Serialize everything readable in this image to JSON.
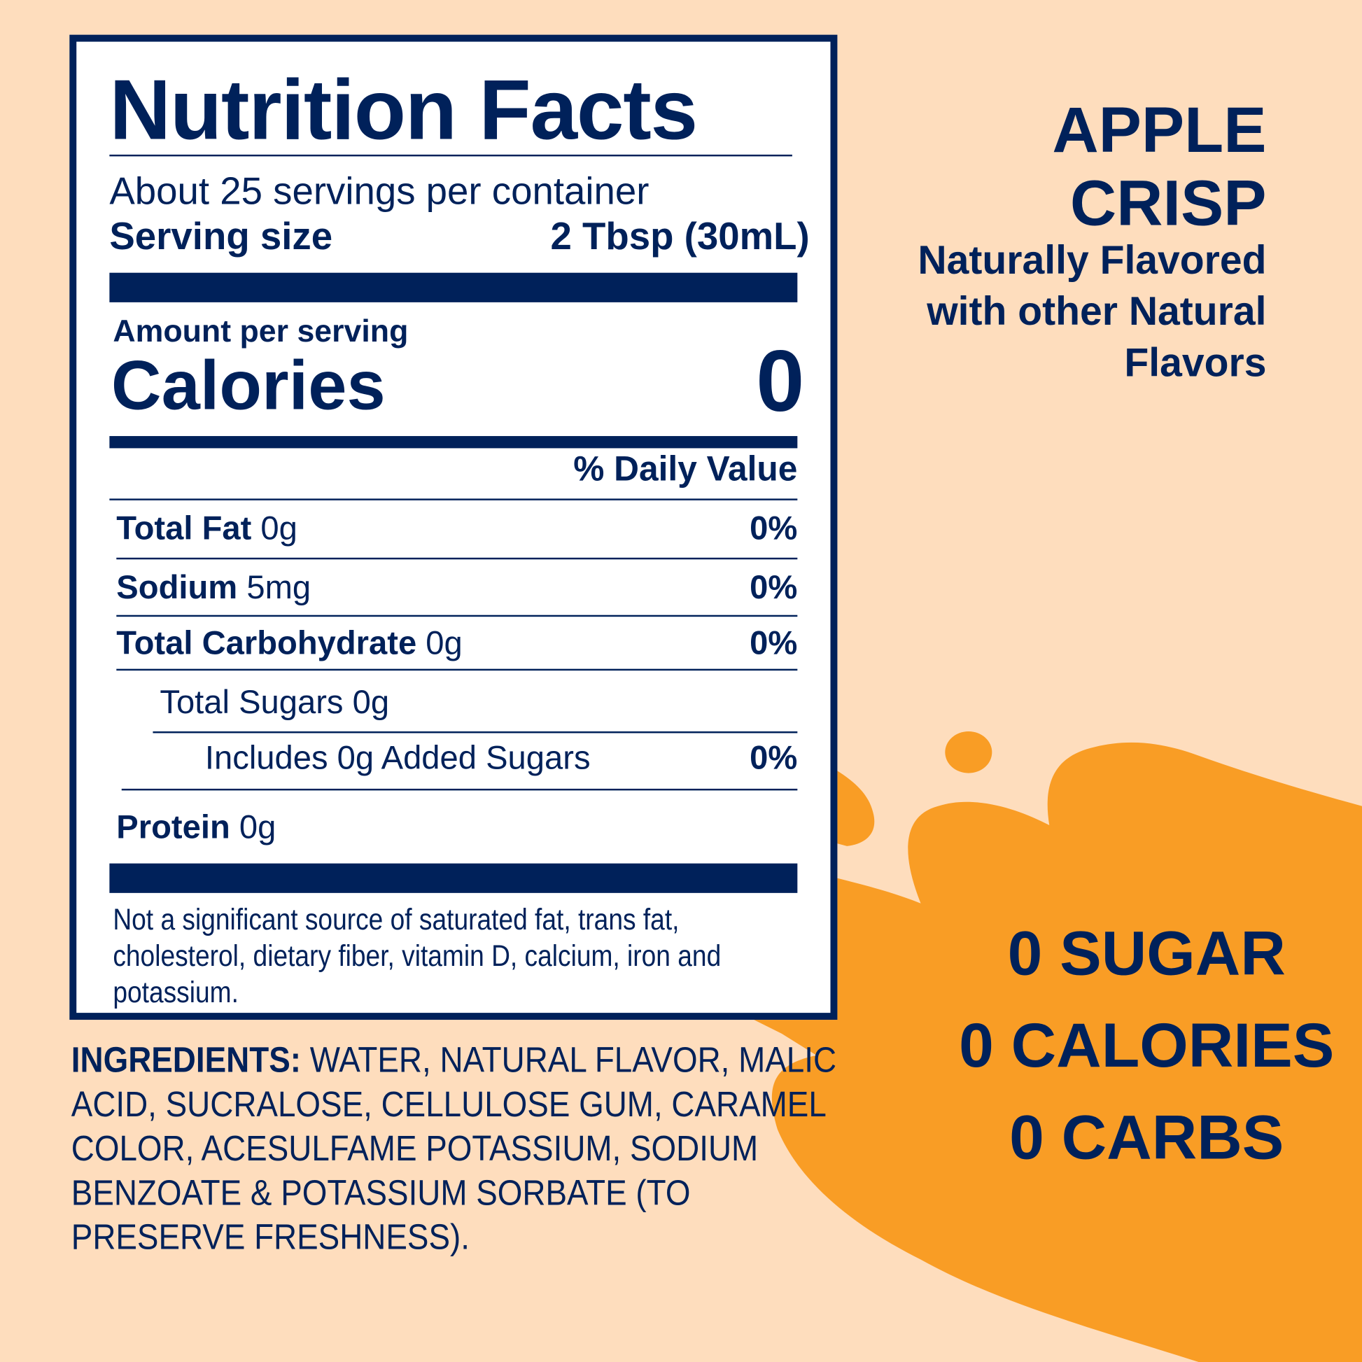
{
  "colors": {
    "navy": "#00215A",
    "orange": "#F99D25",
    "background": "#FEDDBD"
  },
  "label": {
    "title": "Nutrition Facts",
    "servings_per_container": "About 25 servings per container",
    "serving_size_label": "Serving size",
    "serving_size_value": "2 Tbsp (30mL)",
    "amount_per_serving": "Amount per serving",
    "calories_label": "Calories",
    "calories_value": "0",
    "daily_value_header": "% Daily Value",
    "nutrients": [
      {
        "name": "Total Fat",
        "amount": "0g",
        "dv": "0%"
      },
      {
        "name": "Sodium",
        "amount": "5mg",
        "dv": "0%"
      },
      {
        "name": "Total Carbohydrate",
        "amount": "0g",
        "dv": "0%"
      },
      {
        "name": "Total Sugars 0g",
        "amount": "",
        "dv": ""
      },
      {
        "name": "Includes 0g Added Sugars",
        "amount": "",
        "dv": "0%"
      },
      {
        "name": "Protein",
        "amount": "0g",
        "dv": ""
      }
    ],
    "footnote": "Not a significant source of saturated fat, trans fat, cholesterol, dietary fiber, vitamin D, calcium, iron and potassium."
  },
  "ingredients": {
    "label": "INGREDIENTS:",
    "text": " WATER, NATURAL FLAVOR, MALIC ACID, SUCRALOSE, CELLULOSE GUM, CARAMEL COLOR, ACESULFAME POTASSIUM, SODIUM BENZOATE & POTASSIUM SORBATE (TO PRESERVE FRESHNESS)."
  },
  "flavor": {
    "line1": "APPLE",
    "line2": "CRISP",
    "desc1": "Naturally Flavored",
    "desc2": "with other Natural",
    "desc3": "Flavors"
  },
  "claims": [
    "0 SUGAR",
    "0 CALORIES",
    "0 CARBS"
  ]
}
